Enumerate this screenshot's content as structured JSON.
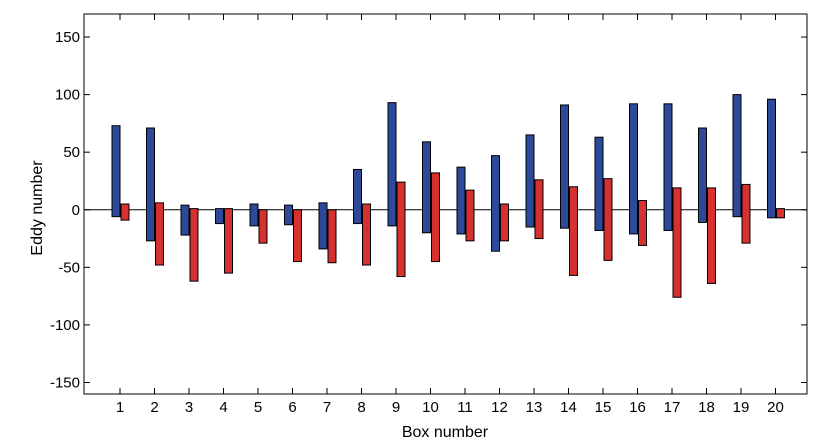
{
  "chart_data": {
    "type": "bar",
    "xlabel": "Box number",
    "ylabel": "Eddy number",
    "ylim": [
      -160,
      170
    ],
    "yticks": [
      150,
      100,
      50,
      0,
      -50,
      -100,
      -150
    ],
    "categories": [
      "1",
      "2",
      "3",
      "4",
      "5",
      "6",
      "7",
      "8",
      "9",
      "10",
      "11",
      "12",
      "13",
      "14",
      "15",
      "16",
      "17",
      "18",
      "19",
      "20"
    ],
    "series": [
      {
        "color": "#2d4a9a",
        "pos": [
          73,
          71,
          4,
          1,
          5,
          4,
          6,
          35,
          93,
          59,
          37,
          47,
          65,
          91,
          63,
          92,
          92,
          71,
          100,
          96
        ],
        "neg": [
          -6,
          -27,
          -22,
          -12,
          -14,
          -13,
          -34,
          -12,
          -14,
          -20,
          -21,
          -36,
          -15,
          -16,
          -18,
          -21,
          -18,
          -11,
          -6,
          -7
        ]
      },
      {
        "color": "#d63030",
        "pos": [
          5,
          6,
          1,
          1,
          0,
          0,
          0,
          5,
          24,
          32,
          17,
          5,
          26,
          20,
          27,
          8,
          19,
          19,
          22,
          1
        ],
        "neg": [
          -9,
          -48,
          -62,
          -55,
          -29,
          -45,
          -46,
          -48,
          -58,
          -45,
          -27,
          -27,
          -25,
          -57,
          -44,
          -31,
          -76,
          -64,
          -29,
          -7
        ]
      }
    ],
    "grid": false,
    "legend": "none"
  }
}
